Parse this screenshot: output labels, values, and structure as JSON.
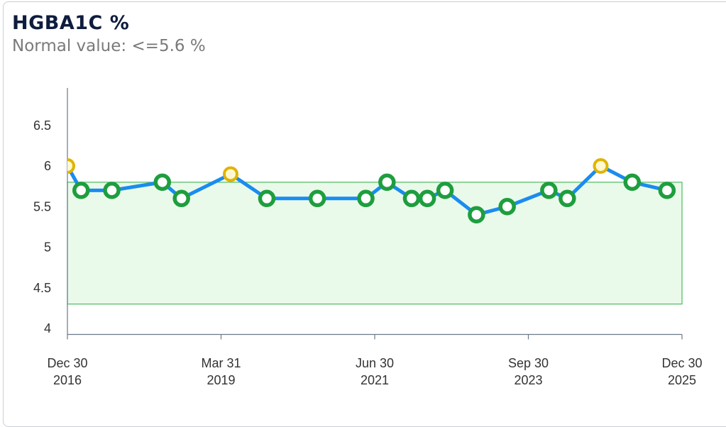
{
  "chart_data": {
    "type": "line",
    "title": "HGBA1C %",
    "subtitle": "Normal value: <=5.6 %",
    "xlabel": "",
    "ylabel": "",
    "ylim": [
      4,
      6.95
    ],
    "xlim": [
      2017.0,
      2026.0
    ],
    "yticks": [
      "4",
      "4.5",
      "5",
      "5.5",
      "6",
      "6.5"
    ],
    "xticks": [
      {
        "value": 2017.0,
        "line1": "Dec 30",
        "line2": "2016"
      },
      {
        "value": 2019.25,
        "line1": "Mar 31",
        "line2": "2019"
      },
      {
        "value": 2021.5,
        "line1": "Jun 30",
        "line2": "2021"
      },
      {
        "value": 2023.75,
        "line1": "Sep 30",
        "line2": "2023"
      },
      {
        "value": 2026.0,
        "line1": "Dec 30",
        "line2": "2025"
      }
    ],
    "normal_range": [
      4.3,
      5.8
    ],
    "grid": false,
    "colors": {
      "line": "#1a8cf0",
      "normal": "#1e9e3e",
      "high": "#e0b400",
      "band_fill": "#eafaea",
      "band_stroke": "#4cbb5e"
    },
    "series": [
      {
        "name": "HGBA1C %",
        "points": [
          {
            "x": 2017.0,
            "y": 6.0,
            "status": "high"
          },
          {
            "x": 2017.2,
            "y": 5.7,
            "status": "normal"
          },
          {
            "x": 2017.65,
            "y": 5.7,
            "status": "normal"
          },
          {
            "x": 2018.39,
            "y": 5.8,
            "status": "normal"
          },
          {
            "x": 2018.67,
            "y": 5.6,
            "status": "normal"
          },
          {
            "x": 2019.39,
            "y": 5.9,
            "status": "high"
          },
          {
            "x": 2019.92,
            "y": 5.6,
            "status": "normal"
          },
          {
            "x": 2020.66,
            "y": 5.6,
            "status": "normal"
          },
          {
            "x": 2021.37,
            "y": 5.6,
            "status": "normal"
          },
          {
            "x": 2021.68,
            "y": 5.8,
            "status": "normal"
          },
          {
            "x": 2022.04,
            "y": 5.6,
            "status": "normal"
          },
          {
            "x": 2022.27,
            "y": 5.6,
            "status": "normal"
          },
          {
            "x": 2022.53,
            "y": 5.7,
            "status": "normal"
          },
          {
            "x": 2022.99,
            "y": 5.4,
            "status": "normal"
          },
          {
            "x": 2023.44,
            "y": 5.5,
            "status": "normal"
          },
          {
            "x": 2024.05,
            "y": 5.7,
            "status": "normal"
          },
          {
            "x": 2024.32,
            "y": 5.6,
            "status": "normal"
          },
          {
            "x": 2024.81,
            "y": 6.0,
            "status": "high"
          },
          {
            "x": 2025.27,
            "y": 5.8,
            "status": "normal"
          },
          {
            "x": 2025.78,
            "y": 5.7,
            "status": "normal"
          }
        ]
      }
    ]
  }
}
